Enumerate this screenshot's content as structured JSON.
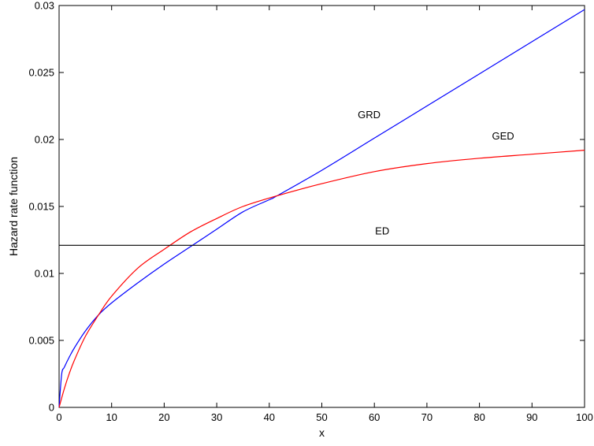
{
  "chart_data": {
    "type": "line",
    "xlabel": "x",
    "ylabel": "Hazard rate function",
    "xlim": [
      0,
      100
    ],
    "ylim": [
      0,
      0.03
    ],
    "xticks": [
      0,
      10,
      20,
      30,
      40,
      50,
      60,
      70,
      80,
      90,
      100
    ],
    "yticks": [
      0,
      0.005,
      0.01,
      0.015,
      0.02,
      0.025,
      0.03
    ],
    "xtick_labels": [
      "0",
      "10",
      "20",
      "30",
      "40",
      "50",
      "60",
      "70",
      "80",
      "90",
      "100"
    ],
    "ytick_labels": [
      "0",
      "0.005",
      "0.01",
      "0.015",
      "0.02",
      "0.025",
      "0.03"
    ],
    "grid": false,
    "legend": "none",
    "series": [
      {
        "name": "GRD",
        "color": "#0000ff",
        "x": [
          0,
          0.5,
          1,
          2,
          3,
          5,
          7.5,
          10,
          15,
          20,
          25,
          30,
          35,
          40,
          41.5,
          50,
          60,
          70,
          80,
          90,
          100
        ],
        "y": [
          0,
          0.0025,
          0.003,
          0.0038,
          0.0045,
          0.0057,
          0.0069,
          0.0078,
          0.0093,
          0.0107,
          0.012,
          0.0133,
          0.0146,
          0.0155,
          0.0158,
          0.0177,
          0.0201,
          0.0225,
          0.0249,
          0.0273,
          0.0297
        ]
      },
      {
        "name": "GED",
        "color": "#ff0000",
        "x": [
          0,
          1,
          2,
          3,
          5,
          7.5,
          10,
          15,
          20,
          25,
          30,
          35,
          41.5,
          50,
          60,
          70,
          80,
          90,
          100
        ],
        "y": [
          0,
          0.0014,
          0.0026,
          0.0036,
          0.0053,
          0.0069,
          0.0083,
          0.0104,
          0.0118,
          0.0131,
          0.0141,
          0.015,
          0.0158,
          0.0167,
          0.0176,
          0.0182,
          0.0186,
          0.0189,
          0.0192
        ]
      },
      {
        "name": "ED",
        "color": "#000000",
        "x": [
          0,
          100
        ],
        "y": [
          0.0121,
          0.0121
        ]
      }
    ],
    "annotations": [
      {
        "text": "GRD",
        "x": 59,
        "y": 0.0216
      },
      {
        "text": "GED",
        "x": 84.5,
        "y": 0.02
      },
      {
        "text": "ED",
        "x": 61.5,
        "y": 0.0129
      }
    ]
  }
}
